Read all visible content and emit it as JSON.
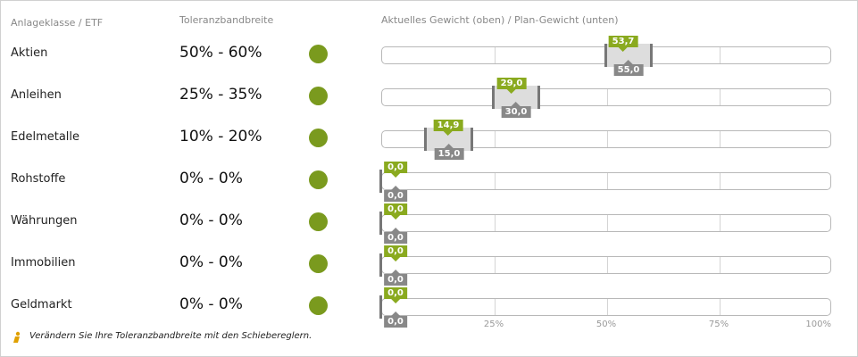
{
  "headers": {
    "asset": "Anlageklasse / ETF",
    "tolerance": "Toleranzbandbreite",
    "weight": "Aktuelles Gewicht (oben) / Plan-Gewicht (unten)"
  },
  "colors": {
    "status_ok": "#7a9a1e",
    "current_label": "#8aaa1f",
    "plan_label": "#888888"
  },
  "rows": [
    {
      "name": "Aktien",
      "tolerance": "50% - 60%",
      "current": "53,7",
      "plan": "55,0",
      "current_pct": 53.7,
      "plan_pct": 55.0,
      "band_min": 50,
      "band_max": 60
    },
    {
      "name": "Anleihen",
      "tolerance": "25% - 35%",
      "current": "29,0",
      "plan": "30,0",
      "current_pct": 29.0,
      "plan_pct": 30.0,
      "band_min": 25,
      "band_max": 35
    },
    {
      "name": "Edelmetalle",
      "tolerance": "10% - 20%",
      "current": "14,9",
      "plan": "15,0",
      "current_pct": 14.9,
      "plan_pct": 15.0,
      "band_min": 10,
      "band_max": 20
    },
    {
      "name": "Rohstoffe",
      "tolerance": "0% - 0%",
      "current": "0,0",
      "plan": "0,0",
      "current_pct": 0,
      "plan_pct": 0,
      "band_min": 0,
      "band_max": 0
    },
    {
      "name": "Währungen",
      "tolerance": "0% - 0%",
      "current": "0,0",
      "plan": "0,0",
      "current_pct": 0,
      "plan_pct": 0,
      "band_min": 0,
      "band_max": 0
    },
    {
      "name": "Immobilien",
      "tolerance": "0% - 0%",
      "current": "0,0",
      "plan": "0,0",
      "current_pct": 0,
      "plan_pct": 0,
      "band_min": 0,
      "band_max": 0
    },
    {
      "name": "Geldmarkt",
      "tolerance": "0% - 0%",
      "current": "0,0",
      "plan": "0,0",
      "current_pct": 0,
      "plan_pct": 0,
      "band_min": 0,
      "band_max": 0
    }
  ],
  "axis_ticks": [
    {
      "label": "25%",
      "pct": 25
    },
    {
      "label": "50%",
      "pct": 50
    },
    {
      "label": "75%",
      "pct": 75
    },
    {
      "label": "100%",
      "pct": 100
    }
  ],
  "footer": {
    "icon": "info-icon",
    "text": "Verändern Sie Ihre Toleranzbandbreite mit den Schiebereglern."
  }
}
